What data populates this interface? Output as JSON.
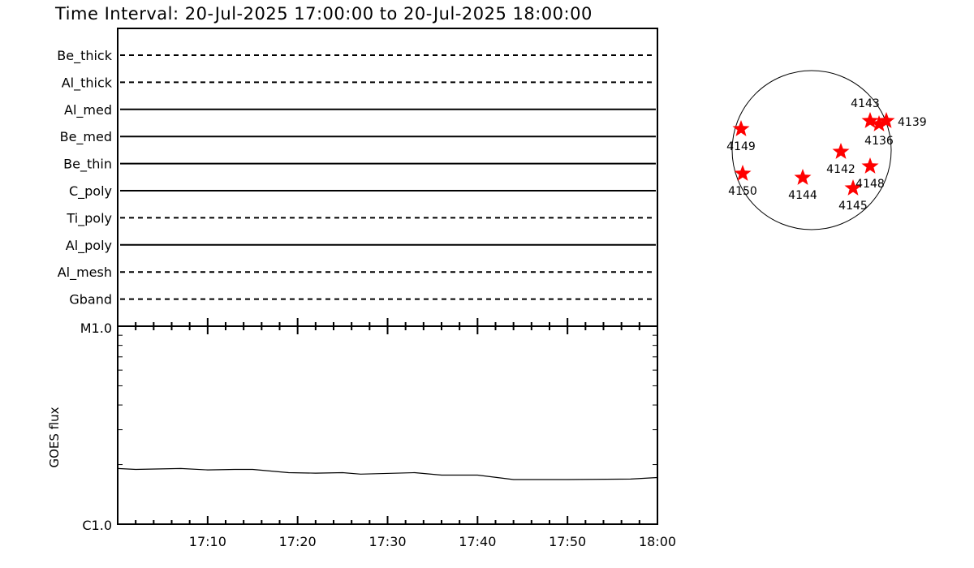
{
  "title": "Time Interval: 20-Jul-2025 17:00:00 to 20-Jul-2025 18:00:00",
  "colors": {
    "axes": "#000000",
    "star": "#ff0000",
    "background": "#ffffff"
  },
  "filter_panel": {
    "filters": [
      {
        "label": "Be_thick",
        "style": "dashed"
      },
      {
        "label": "Al_thick",
        "style": "dashed"
      },
      {
        "label": "Al_med",
        "style": "solid"
      },
      {
        "label": "Be_med",
        "style": "solid"
      },
      {
        "label": "Be_thin",
        "style": "solid"
      },
      {
        "label": "C_poly",
        "style": "solid"
      },
      {
        "label": "Ti_poly",
        "style": "dashed"
      },
      {
        "label": "Al_poly",
        "style": "solid"
      },
      {
        "label": "Al_mesh",
        "style": "dashed"
      },
      {
        "label": "Gband",
        "style": "dashed"
      }
    ]
  },
  "chart_data": [
    {
      "type": "line",
      "ylabel": "GOES flux",
      "yscale": "log",
      "ylim": [
        1e-06,
        1e-05
      ],
      "ytick_labels": [
        "C1.0",
        "M1.0"
      ],
      "xlim": [
        "17:00",
        "18:00"
      ],
      "xtick_labels": [
        "17:10",
        "17:20",
        "17:30",
        "17:40",
        "17:50",
        "18:00"
      ],
      "grid": false,
      "x": [
        "17:00",
        "17:02",
        "17:07",
        "17:10",
        "17:13",
        "17:15",
        "17:19",
        "17:22",
        "17:25",
        "17:27",
        "17:33",
        "17:36",
        "17:40",
        "17:44",
        "17:50",
        "17:57",
        "18:00"
      ],
      "y": [
        1.91e-06,
        1.89e-06,
        1.91e-06,
        1.88e-06,
        1.89e-06,
        1.89e-06,
        1.82e-06,
        1.81e-06,
        1.82e-06,
        1.79e-06,
        1.82e-06,
        1.77e-06,
        1.77e-06,
        1.68e-06,
        1.68e-06,
        1.69e-06,
        1.72e-06
      ]
    },
    {
      "type": "scatter",
      "description_kind": "solar disk active regions",
      "regions": [
        "4149",
        "4150",
        "4144",
        "4142",
        "4148",
        "4145",
        "4143",
        "4136",
        "4139"
      ]
    }
  ]
}
